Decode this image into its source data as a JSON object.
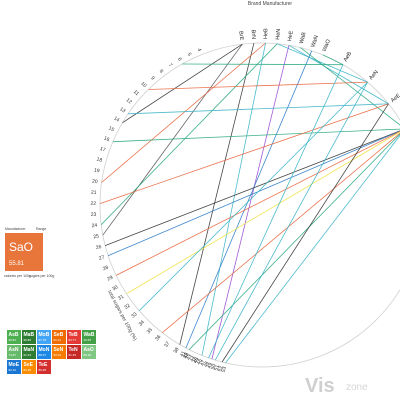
{
  "chart_data": {
    "type": "chord-links",
    "title": "",
    "axis_titles": {
      "manufacturer": "Brand Manufacturer",
      "lower_left": "total sugars per 100g (%)"
    },
    "top_labels": [
      "BrE",
      "BrN",
      "HeB",
      "HeN",
      "HeE",
      "WaB",
      "WaN",
      "WaO"
    ],
    "right_labels": [
      "AeB",
      "AeN",
      "AeE",
      "AoE"
    ],
    "left_ticks": [
      "4",
      "5",
      "6",
      "7",
      "8",
      "9",
      "10",
      "11",
      "12",
      "13",
      "14",
      "15",
      "16",
      "17",
      "18",
      "19",
      "20",
      "21",
      "22",
      "23",
      "24",
      "25",
      "26",
      "27",
      "28",
      "29",
      "30",
      "31",
      "32",
      "33",
      "34",
      "35",
      "36",
      "37",
      "38",
      "39",
      "40"
    ],
    "bottom_ticks": [
      "41",
      "42",
      "43",
      "44",
      "45",
      "46",
      "47",
      "48",
      "49",
      "50",
      "51",
      "52",
      "53"
    ],
    "links": [
      {
        "from": "BrE",
        "to": "14",
        "color": "#333333"
      },
      {
        "from": "BrE",
        "to": "25",
        "color": "#555555"
      },
      {
        "from": "BrN",
        "to": "38",
        "color": "#333333"
      },
      {
        "from": "HeB",
        "to": "20",
        "color": "#e8643c"
      },
      {
        "from": "HeB",
        "to": "46",
        "color": "#3ab4c8"
      },
      {
        "from": "HeN",
        "to": "24",
        "color": "#28a87d"
      },
      {
        "from": "HeN",
        "to": "AeN",
        "color": "#3ab4c8"
      },
      {
        "from": "HeE",
        "to": "49",
        "color": "#9b4ad0"
      },
      {
        "from": "HeE",
        "to": "AeE",
        "color": "#3ab4c8"
      },
      {
        "from": "WaB",
        "to": "AoE",
        "color": "#28a87d"
      },
      {
        "from": "WaN",
        "to": "41",
        "color": "#2a7bc8"
      },
      {
        "from": "WaO",
        "to": "AeB",
        "color": "#28a87d"
      },
      {
        "from": "6",
        "to": "AeB",
        "color": "#28a87d"
      },
      {
        "from": "10",
        "to": "AeN",
        "color": "#e8643c"
      },
      {
        "from": "13",
        "to": "AeE",
        "color": "#3ab4c8"
      },
      {
        "from": "16",
        "to": "AoE",
        "color": "#28a87d"
      },
      {
        "from": "22",
        "to": "AeE",
        "color": "#e8643c"
      },
      {
        "from": "26",
        "to": "AoE",
        "color": "#333333"
      },
      {
        "from": "27",
        "to": "AoE",
        "color": "#2a7bc8"
      },
      {
        "from": "29",
        "to": "AoE",
        "color": "#e8643c"
      },
      {
        "from": "31",
        "to": "AoE",
        "color": "#f0e040"
      },
      {
        "from": "33",
        "to": "AeN",
        "color": "#3ab4c8"
      },
      {
        "from": "36",
        "to": "AoE",
        "color": "#e8643c"
      },
      {
        "from": "39",
        "to": "AoE",
        "color": "#28a87d"
      },
      {
        "from": "AeB",
        "to": "48",
        "color": "#3ab4c8"
      },
      {
        "from": "AeN",
        "to": "50",
        "color": "#3ab4c8"
      },
      {
        "from": "AeE",
        "to": "52",
        "color": "#333333"
      },
      {
        "from": "AoE",
        "to": "53",
        "color": "#3ab4c8"
      }
    ]
  },
  "detail": {
    "left_caption": "Manufacturer",
    "right_caption": "Range",
    "symbol": "SaO",
    "value": "55.81",
    "bottom_left": "calories per 100g",
    "bottom_right": "sugars per 100g",
    "color": "#e8753a"
  },
  "tiles": [
    {
      "sym": "AsB",
      "val": "45.81",
      "color": "#4caf50"
    },
    {
      "sym": "MaB",
      "val": "96.86",
      "color": "#2e7d32"
    },
    {
      "sym": "MoB",
      "val": "97.78",
      "color": "#42a5f5"
    },
    {
      "sym": "SeB",
      "val": "91.21",
      "color": "#ef6c00"
    },
    {
      "sym": "TeB",
      "val": "84.77",
      "color": "#e53935"
    },
    {
      "sym": "WaB",
      "val": "42.55",
      "color": "#43a047"
    },
    {
      "sym": "AsN",
      "val": "74.87",
      "color": "#66bb6a"
    },
    {
      "sym": "MaN",
      "val": "61.23",
      "color": "#2e7d32"
    },
    {
      "sym": "MoN",
      "val": "88.37",
      "color": "#1e88e5"
    },
    {
      "sym": "SeN",
      "val": "63.15",
      "color": "#f57c00"
    },
    {
      "sym": "TeN",
      "val": "61.45",
      "color": "#c62828"
    },
    {
      "sym": "AsO",
      "val": "89.18",
      "color": "#81c784"
    },
    {
      "sym": "MoE",
      "val": "52.12",
      "color": "#1976d2"
    },
    {
      "sym": "SeE",
      "val": "84.48",
      "color": "#fb8c00"
    },
    {
      "sym": "TeE",
      "val": "89.28",
      "color": "#d32f2f"
    }
  ],
  "watermark": {
    "brand": "Vis",
    "suffix": "zone"
  }
}
